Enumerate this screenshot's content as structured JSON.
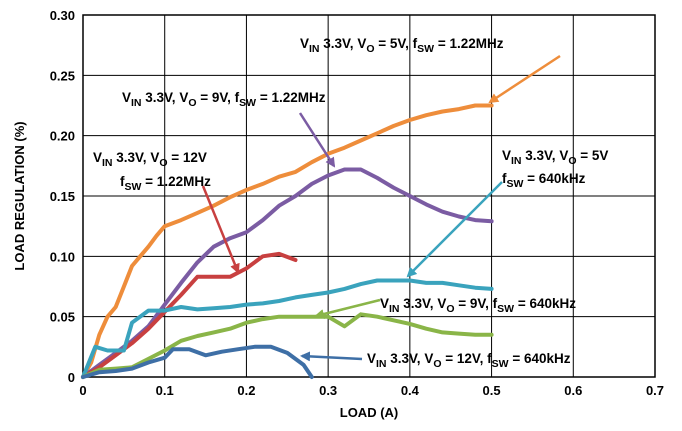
{
  "chart_data": {
    "type": "line",
    "xlabel": "LOAD (A)",
    "ylabel": "LOAD REGULATION (%)",
    "xlim": [
      0,
      0.7
    ],
    "ylim": [
      0,
      0.3
    ],
    "grid": true,
    "xticks": [
      "0",
      "0.1",
      "0.2",
      "0.3",
      "0.4",
      "0.5",
      "0.6",
      "0.7"
    ],
    "yticks": [
      "0",
      "0.05",
      "0.10",
      "0.15",
      "0.20",
      "0.25",
      "0.30"
    ],
    "series": [
      {
        "color": "#ee8d3b",
        "points": [
          [
            0,
            0
          ],
          [
            0.01,
            0.012
          ],
          [
            0.02,
            0.035
          ],
          [
            0.03,
            0.05
          ],
          [
            0.04,
            0.058
          ],
          [
            0.05,
            0.075
          ],
          [
            0.06,
            0.092
          ],
          [
            0.07,
            0.1
          ],
          [
            0.08,
            0.108
          ],
          [
            0.09,
            0.117
          ],
          [
            0.1,
            0.125
          ],
          [
            0.12,
            0.13
          ],
          [
            0.14,
            0.136
          ],
          [
            0.16,
            0.142
          ],
          [
            0.18,
            0.149
          ],
          [
            0.2,
            0.155
          ],
          [
            0.22,
            0.16
          ],
          [
            0.24,
            0.166
          ],
          [
            0.26,
            0.17
          ],
          [
            0.28,
            0.178
          ],
          [
            0.3,
            0.185
          ],
          [
            0.32,
            0.19
          ],
          [
            0.34,
            0.196
          ],
          [
            0.36,
            0.202
          ],
          [
            0.38,
            0.208
          ],
          [
            0.4,
            0.213
          ],
          [
            0.42,
            0.217
          ],
          [
            0.44,
            0.22
          ],
          [
            0.46,
            0.222
          ],
          [
            0.48,
            0.225
          ],
          [
            0.5,
            0.225
          ]
        ]
      },
      {
        "color": "#7b5ca3",
        "points": [
          [
            0,
            0
          ],
          [
            0.02,
            0.01
          ],
          [
            0.04,
            0.02
          ],
          [
            0.06,
            0.03
          ],
          [
            0.08,
            0.042
          ],
          [
            0.1,
            0.06
          ],
          [
            0.12,
            0.078
          ],
          [
            0.14,
            0.095
          ],
          [
            0.16,
            0.108
          ],
          [
            0.18,
            0.115
          ],
          [
            0.2,
            0.12
          ],
          [
            0.22,
            0.13
          ],
          [
            0.24,
            0.142
          ],
          [
            0.26,
            0.15
          ],
          [
            0.28,
            0.16
          ],
          [
            0.3,
            0.167
          ],
          [
            0.32,
            0.172
          ],
          [
            0.34,
            0.172
          ],
          [
            0.36,
            0.165
          ],
          [
            0.38,
            0.157
          ],
          [
            0.4,
            0.15
          ],
          [
            0.42,
            0.143
          ],
          [
            0.44,
            0.137
          ],
          [
            0.46,
            0.133
          ],
          [
            0.48,
            0.13
          ],
          [
            0.5,
            0.129
          ]
        ]
      },
      {
        "color": "#c84040",
        "points": [
          [
            0,
            0
          ],
          [
            0.02,
            0.008
          ],
          [
            0.04,
            0.018
          ],
          [
            0.06,
            0.028
          ],
          [
            0.08,
            0.04
          ],
          [
            0.1,
            0.054
          ],
          [
            0.12,
            0.068
          ],
          [
            0.14,
            0.083
          ],
          [
            0.16,
            0.083
          ],
          [
            0.18,
            0.083
          ],
          [
            0.2,
            0.09
          ],
          [
            0.22,
            0.1
          ],
          [
            0.24,
            0.102
          ],
          [
            0.26,
            0.097
          ]
        ]
      },
      {
        "color": "#3aa3bd",
        "points": [
          [
            0,
            0
          ],
          [
            0.015,
            0.025
          ],
          [
            0.03,
            0.022
          ],
          [
            0.05,
            0.022
          ],
          [
            0.06,
            0.045
          ],
          [
            0.08,
            0.055
          ],
          [
            0.1,
            0.055
          ],
          [
            0.12,
            0.058
          ],
          [
            0.14,
            0.056
          ],
          [
            0.16,
            0.057
          ],
          [
            0.18,
            0.058
          ],
          [
            0.2,
            0.06
          ],
          [
            0.22,
            0.061
          ],
          [
            0.24,
            0.063
          ],
          [
            0.26,
            0.066
          ],
          [
            0.28,
            0.068
          ],
          [
            0.3,
            0.07
          ],
          [
            0.32,
            0.073
          ],
          [
            0.34,
            0.077
          ],
          [
            0.36,
            0.08
          ],
          [
            0.38,
            0.08
          ],
          [
            0.4,
            0.08
          ],
          [
            0.42,
            0.078
          ],
          [
            0.44,
            0.078
          ],
          [
            0.46,
            0.076
          ],
          [
            0.48,
            0.074
          ],
          [
            0.5,
            0.073
          ]
        ]
      },
      {
        "color": "#8ab548",
        "points": [
          [
            0,
            0
          ],
          [
            0.02,
            0.006
          ],
          [
            0.04,
            0.007
          ],
          [
            0.06,
            0.008
          ],
          [
            0.08,
            0.015
          ],
          [
            0.1,
            0.022
          ],
          [
            0.12,
            0.03
          ],
          [
            0.14,
            0.034
          ],
          [
            0.16,
            0.037
          ],
          [
            0.18,
            0.04
          ],
          [
            0.2,
            0.045
          ],
          [
            0.22,
            0.048
          ],
          [
            0.24,
            0.05
          ],
          [
            0.26,
            0.05
          ],
          [
            0.28,
            0.05
          ],
          [
            0.3,
            0.05
          ],
          [
            0.32,
            0.042
          ],
          [
            0.34,
            0.052
          ],
          [
            0.36,
            0.05
          ],
          [
            0.38,
            0.047
          ],
          [
            0.4,
            0.044
          ],
          [
            0.42,
            0.04
          ],
          [
            0.44,
            0.037
          ],
          [
            0.46,
            0.036
          ],
          [
            0.48,
            0.035
          ],
          [
            0.5,
            0.035
          ]
        ]
      },
      {
        "color": "#3e6fa6",
        "points": [
          [
            0,
            0
          ],
          [
            0.02,
            0.004
          ],
          [
            0.04,
            0.005
          ],
          [
            0.06,
            0.007
          ],
          [
            0.08,
            0.012
          ],
          [
            0.1,
            0.016
          ],
          [
            0.11,
            0.023
          ],
          [
            0.13,
            0.023
          ],
          [
            0.15,
            0.018
          ],
          [
            0.17,
            0.021
          ],
          [
            0.19,
            0.023
          ],
          [
            0.21,
            0.025
          ],
          [
            0.23,
            0.025
          ],
          [
            0.25,
            0.02
          ],
          [
            0.27,
            0.01
          ],
          [
            0.28,
            0.0
          ]
        ]
      }
    ],
    "annotations": [
      {
        "vin": "V",
        "vin_sub": "IN",
        "vin_text": " 3.3V, ",
        "vo": "V",
        "vo_sub": "O",
        "vo_text": " = 5V, ",
        "fsw": "f",
        "fsw_sub": "SW",
        "fsw_text": " = 1.22MHz",
        "color": "#ee8d3b"
      },
      {
        "vin": "V",
        "vin_sub": "IN",
        "vin_text": " 3.3V, ",
        "vo": "V",
        "vo_sub": "O",
        "vo_text": " = 9V, ",
        "fsw": "f",
        "fsw_sub": "SW",
        "fsw_text": " = 1.22MHz",
        "color": "#7b5ca3"
      },
      {
        "vin": "V",
        "vin_sub": "IN",
        "vin_text": " 3.3V, ",
        "vo": "V",
        "vo_sub": "O",
        "vo_text": " = 12V",
        "fsw": "f",
        "fsw_sub": "SW",
        "fsw_text": " = 1.22MHz",
        "color": "#c84040"
      },
      {
        "vin": "V",
        "vin_sub": "IN",
        "vin_text": " 3.3V, ",
        "vo": "V",
        "vo_sub": "O",
        "vo_text": " = 5V",
        "fsw": "f",
        "fsw_sub": "SW",
        "fsw_text": " = 640kHz",
        "color": "#3aa3bd"
      },
      {
        "vin": "V",
        "vin_sub": "IN",
        "vin_text": " 3.3V, ",
        "vo": "V",
        "vo_sub": "O",
        "vo_text": " = 9V, ",
        "fsw": "f",
        "fsw_sub": "SW",
        "fsw_text": " = 640kHz",
        "color": "#8ab548"
      },
      {
        "vin": "V",
        "vin_sub": "IN",
        "vin_text": " 3.3V, ",
        "vo": "V",
        "vo_sub": "O",
        "vo_text": " = 12V, ",
        "fsw": "f",
        "fsw_sub": "SW",
        "fsw_text": " = 640kHz",
        "color": "#3e6fa6"
      }
    ]
  }
}
